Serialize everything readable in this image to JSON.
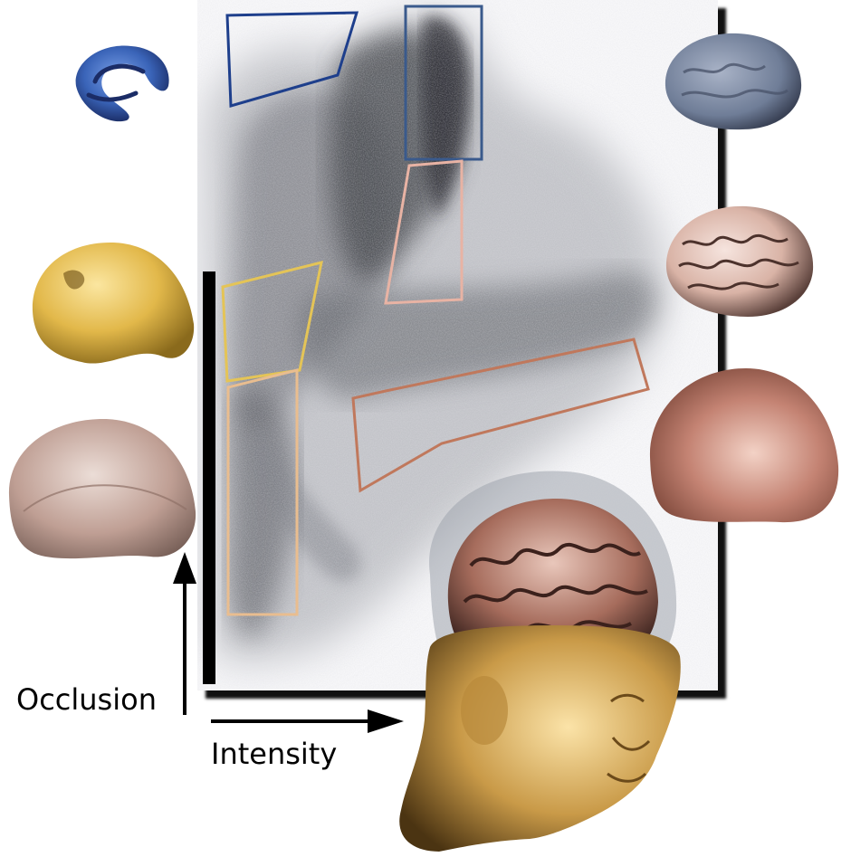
{
  "axes": {
    "y_label": "Occlusion",
    "x_label": "Intensity"
  },
  "regions": [
    {
      "id": "region-top-left",
      "color": "#1e3f8c"
    },
    {
      "id": "region-top-middle",
      "color": "#3a5a8c"
    },
    {
      "id": "region-middle-pink",
      "color": "#e8b3a4"
    },
    {
      "id": "region-left-yellow",
      "color": "#e4c457"
    },
    {
      "id": "region-left-tan",
      "color": "#e9bd8f"
    },
    {
      "id": "region-right-brown",
      "color": "#c0785c"
    }
  ],
  "renderings": [
    {
      "id": "blue-vessels",
      "color": "#3a64b8"
    },
    {
      "id": "blue-brain",
      "color": "#6f7d97"
    },
    {
      "id": "yellow-skull",
      "color": "#e2b84a"
    },
    {
      "id": "pink-brain",
      "color": "#d9b3a6"
    },
    {
      "id": "translucent-skull",
      "color": "#b89488"
    },
    {
      "id": "skin-head",
      "color": "#c48373"
    },
    {
      "id": "composite-head",
      "color": "#c99a48"
    }
  ]
}
